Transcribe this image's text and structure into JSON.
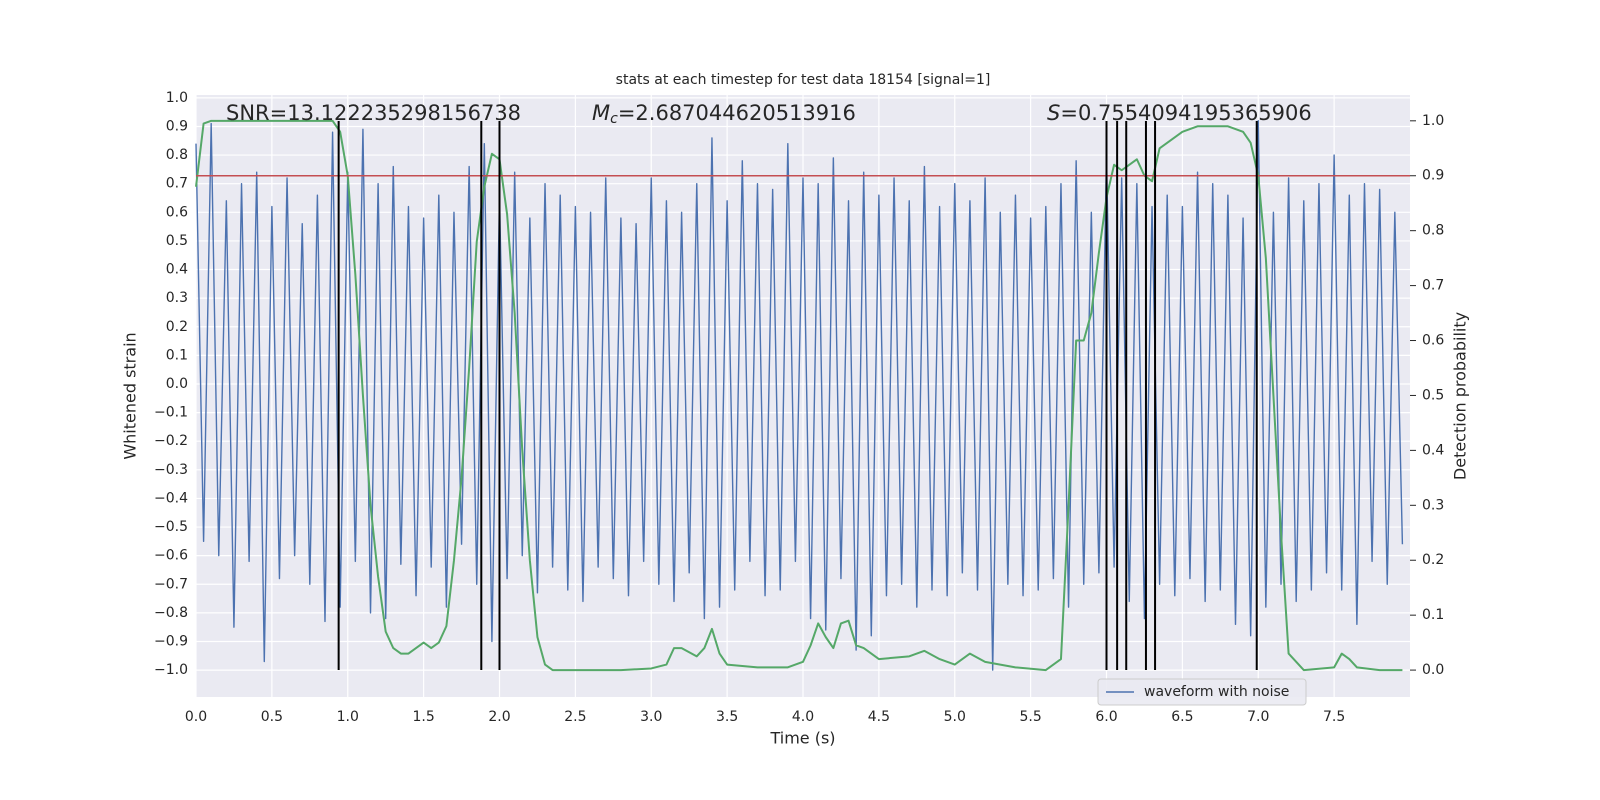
{
  "chart_data": {
    "type": "line",
    "title": "stats at each timestep for test data 18154 [signal=1]",
    "xlabel": "Time (s)",
    "ylabel": "Whitened strain",
    "y2label": "Detection probability",
    "annotations": [
      {
        "text": "SNR=13.122235298156738"
      },
      {
        "symbol": "M",
        "subscript": "c",
        "text": "=2.687044620513916"
      },
      {
        "symbol": "S",
        "text": "=0.7554094195365906"
      }
    ],
    "xlim": [
      0,
      8.0
    ],
    "ylim": [
      -1.094,
      1.01
    ],
    "y2lim": [
      -0.049,
      1.047
    ],
    "xticks": [
      {
        "value": 0,
        "label": "0.0"
      },
      0.5,
      {
        "value": 1,
        "label": "1.0"
      },
      1.5,
      {
        "value": 2,
        "label": "2.0"
      },
      2.5,
      {
        "value": 3,
        "label": "3.0"
      },
      3.5,
      {
        "value": 4,
        "label": "4.0"
      },
      4.5,
      {
        "value": 5,
        "label": "5.0"
      },
      5.5,
      {
        "value": 6,
        "label": "6.0"
      },
      6.5,
      {
        "value": 7,
        "label": "7.0"
      },
      7.5
    ],
    "yticks": [
      {
        "value": -1,
        "label": "−1.0"
      },
      {
        "value": -0.9,
        "label": "−0.9"
      },
      {
        "value": -0.8,
        "label": "−0.8"
      },
      {
        "value": -0.7,
        "label": "−0.7"
      },
      {
        "value": -0.6,
        "label": "−0.6"
      },
      {
        "value": -0.5,
        "label": "−0.5"
      },
      {
        "value": -0.4,
        "label": "−0.4"
      },
      {
        "value": -0.3,
        "label": "−0.3"
      },
      {
        "value": -0.2,
        "label": "−0.2"
      },
      {
        "value": -0.1,
        "label": "−0.1"
      },
      {
        "value": 0,
        "label": "0.0"
      },
      0.1,
      0.2,
      0.3,
      0.4,
      0.5,
      0.6,
      0.7,
      0.8,
      0.9,
      {
        "value": 1,
        "label": "1.0"
      }
    ],
    "y2ticks": [
      {
        "value": 0,
        "label": "0.0"
      },
      0.1,
      0.2,
      0.3,
      0.4,
      0.5,
      0.6,
      0.7,
      0.8,
      0.9,
      {
        "value": 1,
        "label": "1.0"
      }
    ],
    "grid": true,
    "legend": "lower right",
    "series": [
      {
        "name": "waveform with noise",
        "color": "#4c72b0",
        "x": [
          0,
          0.05,
          0.1,
          0.15,
          0.2,
          0.25,
          0.3,
          0.35,
          0.4,
          0.45,
          0.5,
          0.55,
          0.6,
          0.65,
          0.7,
          0.75,
          0.8,
          0.85,
          0.9,
          0.95,
          1,
          1.05,
          1.1,
          1.15,
          1.2,
          1.25,
          1.3,
          1.35,
          1.4,
          1.45,
          1.5,
          1.55,
          1.6,
          1.65,
          1.7,
          1.75,
          1.8,
          1.85,
          1.9,
          1.95,
          2,
          2.05,
          2.1,
          2.15,
          2.2,
          2.25,
          2.3,
          2.35,
          2.4,
          2.45,
          2.5,
          2.55,
          2.6,
          2.65,
          2.7,
          2.75,
          2.8,
          2.85,
          2.9,
          2.95,
          3,
          3.05,
          3.1,
          3.15,
          3.2,
          3.25,
          3.3,
          3.35,
          3.4,
          3.45,
          3.5,
          3.55,
          3.6,
          3.65,
          3.7,
          3.75,
          3.8,
          3.85,
          3.9,
          3.95,
          4,
          4.05,
          4.1,
          4.15,
          4.2,
          4.25,
          4.3,
          4.35,
          4.4,
          4.45,
          4.5,
          4.55,
          4.6,
          4.65,
          4.7,
          4.75,
          4.8,
          4.85,
          4.9,
          4.95,
          5,
          5.05,
          5.1,
          5.15,
          5.2,
          5.25,
          5.3,
          5.35,
          5.4,
          5.45,
          5.5,
          5.55,
          5.6,
          5.65,
          5.7,
          5.75,
          5.8,
          5.85,
          5.9,
          5.95,
          6,
          6.05,
          6.1,
          6.15,
          6.2,
          6.25,
          6.3,
          6.35,
          6.4,
          6.45,
          6.5,
          6.55,
          6.6,
          6.65,
          6.7,
          6.75,
          6.8,
          6.85,
          6.9,
          6.95,
          7,
          7.05,
          7.1,
          7.15,
          7.2,
          7.25,
          7.3,
          7.35,
          7.4,
          7.45,
          7.5,
          7.55,
          7.6,
          7.65,
          7.7,
          7.75,
          7.8,
          7.85,
          7.9,
          7.95
        ],
        "values": [
          0.84,
          -0.55,
          0.91,
          -0.6,
          0.64,
          -0.85,
          0.7,
          -0.62,
          0.74,
          -0.97,
          0.62,
          -0.68,
          0.72,
          -0.6,
          0.56,
          -0.7,
          0.66,
          -0.83,
          0.88,
          -0.78,
          0.74,
          -0.62,
          0.89,
          -0.8,
          0.7,
          -0.82,
          0.76,
          -0.63,
          0.62,
          -0.74,
          0.58,
          -0.64,
          0.66,
          -0.78,
          0.6,
          -0.56,
          0.76,
          -0.7,
          0.84,
          -0.9,
          0.66,
          -0.68,
          0.74,
          -0.6,
          0.58,
          -0.73,
          0.7,
          -0.64,
          0.66,
          -0.72,
          0.62,
          -0.76,
          0.6,
          -0.64,
          0.72,
          -0.68,
          0.58,
          -0.74,
          0.56,
          -0.62,
          0.72,
          -0.7,
          0.64,
          -0.76,
          0.6,
          -0.66,
          0.7,
          -0.82,
          0.86,
          -0.78,
          0.64,
          -0.72,
          0.78,
          -0.62,
          0.7,
          -0.74,
          0.68,
          -0.72,
          0.84,
          -0.62,
          0.72,
          -0.82,
          0.7,
          -0.86,
          0.79,
          -0.68,
          0.64,
          -0.93,
          0.74,
          -0.88,
          0.66,
          -0.74,
          0.72,
          -0.7,
          0.64,
          -0.78,
          0.76,
          -0.72,
          0.62,
          -0.74,
          0.7,
          -0.66,
          0.64,
          -0.72,
          0.72,
          -1.0,
          0.6,
          -0.7,
          0.66,
          -0.74,
          0.58,
          -0.72,
          0.62,
          -0.68,
          0.7,
          -0.78,
          0.78,
          -0.7,
          0.6,
          -0.66,
          0.8,
          -0.64,
          0.72,
          -0.76,
          0.7,
          -0.82,
          0.62,
          -0.7,
          0.66,
          -0.74,
          0.62,
          -0.68,
          0.74,
          -0.76,
          0.7,
          -0.72,
          0.66,
          -0.84,
          0.58,
          -0.88,
          0.92,
          -0.78,
          0.6,
          -0.7,
          0.72,
          -0.76,
          0.64,
          -0.72,
          0.7,
          -0.66,
          0.8,
          -0.72,
          0.66,
          -0.84,
          0.7,
          -0.62,
          0.68,
          -0.7,
          0.6,
          -0.56
        ]
      },
      {
        "color": "#55a868",
        "axis": "y2",
        "x": [
          0,
          0.05,
          0.1,
          0.9,
          0.95,
          1,
          1.05,
          1.1,
          1.15,
          1.2,
          1.25,
          1.3,
          1.35,
          1.4,
          1.5,
          1.55,
          1.6,
          1.65,
          1.7,
          1.75,
          1.8,
          1.85,
          1.9,
          1.95,
          2,
          2.05,
          2.1,
          2.15,
          2.2,
          2.25,
          2.3,
          2.35,
          2.5,
          2.8,
          3,
          3.1,
          3.15,
          3.2,
          3.3,
          3.35,
          3.4,
          3.45,
          3.5,
          3.7,
          3.9,
          4,
          4.05,
          4.1,
          4.15,
          4.2,
          4.25,
          4.3,
          4.35,
          4.4,
          4.5,
          4.7,
          4.8,
          4.9,
          5,
          5.1,
          5.2,
          5.4,
          5.6,
          5.7,
          5.75,
          5.8,
          5.85,
          5.9,
          5.95,
          6,
          6.05,
          6.1,
          6.15,
          6.2,
          6.25,
          6.3,
          6.35,
          6.4,
          6.5,
          6.6,
          6.7,
          6.8,
          6.9,
          6.95,
          7,
          7.05,
          7.1,
          7.15,
          7.2,
          7.3,
          7.5,
          7.55,
          7.6,
          7.65,
          7.8,
          7.95
        ],
        "values": [
          0.88,
          0.995,
          1.0,
          1.0,
          0.98,
          0.9,
          0.72,
          0.5,
          0.3,
          0.17,
          0.07,
          0.04,
          0.03,
          0.03,
          0.05,
          0.04,
          0.05,
          0.08,
          0.2,
          0.35,
          0.55,
          0.78,
          0.88,
          0.94,
          0.93,
          0.83,
          0.65,
          0.4,
          0.2,
          0.06,
          0.01,
          0.0,
          0.0,
          0.0,
          0.003,
          0.01,
          0.04,
          0.04,
          0.025,
          0.04,
          0.075,
          0.03,
          0.01,
          0.005,
          0.005,
          0.015,
          0.045,
          0.085,
          0.06,
          0.04,
          0.085,
          0.09,
          0.045,
          0.04,
          0.02,
          0.025,
          0.035,
          0.02,
          0.01,
          0.03,
          0.015,
          0.005,
          0.0,
          0.02,
          0.3,
          0.6,
          0.6,
          0.65,
          0.76,
          0.86,
          0.92,
          0.91,
          0.92,
          0.93,
          0.9,
          0.89,
          0.95,
          0.96,
          0.98,
          0.99,
          0.99,
          0.99,
          0.98,
          0.96,
          0.9,
          0.75,
          0.5,
          0.25,
          0.03,
          0.0,
          0.005,
          0.03,
          0.02,
          0.005,
          0.0,
          0.0
        ]
      }
    ],
    "hlines": [
      {
        "value": 0.9,
        "axis": "y2",
        "color": "#c44e52"
      }
    ],
    "vlines": {
      "x": [
        0.94,
        1.88,
        2.0,
        6.0,
        6.07,
        6.13,
        6.26,
        6.32,
        6.99
      ],
      "color": "#000000"
    }
  }
}
